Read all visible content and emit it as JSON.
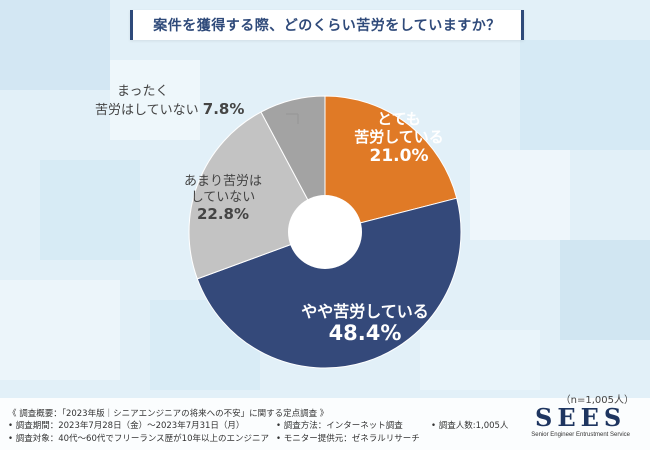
{
  "title": "案件を獲得する際、どのくらい苦労をしていますか？",
  "n_label": "（n=1,005人）",
  "chart_data": {
    "type": "pie",
    "title": "案件を獲得する際、どのくらい苦労をしていますか？",
    "slices": [
      {
        "label": "とても 苦労している",
        "value": 21.0,
        "display": "21.0%",
        "color": "#e07a26"
      },
      {
        "label": "やや苦労している",
        "value": 48.4,
        "display": "48.4%",
        "color": "#34497a"
      },
      {
        "label": "あまり苦労は していない",
        "value": 22.8,
        "display": "22.8%",
        "color": "#c3c3c3"
      },
      {
        "label": "まったく 苦労はしていない",
        "value": 7.8,
        "display": "7.8%",
        "color": "#a3a3a3"
      }
    ]
  },
  "labels": {
    "s1_line1": "とても",
    "s1_line2": "苦労している",
    "s1_pct": "21.0%",
    "s2_line1": "やや苦労している",
    "s2_pct": "48.4%",
    "s3_line1": "あまり苦労は",
    "s3_line2": "していない",
    "s3_pct": "22.8%",
    "s4_line1": "まったく",
    "s4_line2": "苦労はしていない",
    "s4_pct": "7.8%"
  },
  "footer": {
    "overview": "《 調査概要：「2023年版｜シニアエンジニアの将来への不安」に関する定点調査 》",
    "period": "• 調査期間：2023年7月28日（金）〜2023年7月31日（月）",
    "method": "• 調査方法：インターネット調査",
    "count": "• 調査人数:1,005人",
    "target": "• 調査対象：40代〜60代でフリーランス歴が10年以上のエンジニア",
    "provider": "• モニター提供元：ゼネラルリサーチ"
  },
  "logo": {
    "main": "SEES",
    "sub": "Senior Engineer Entrustment Service"
  }
}
